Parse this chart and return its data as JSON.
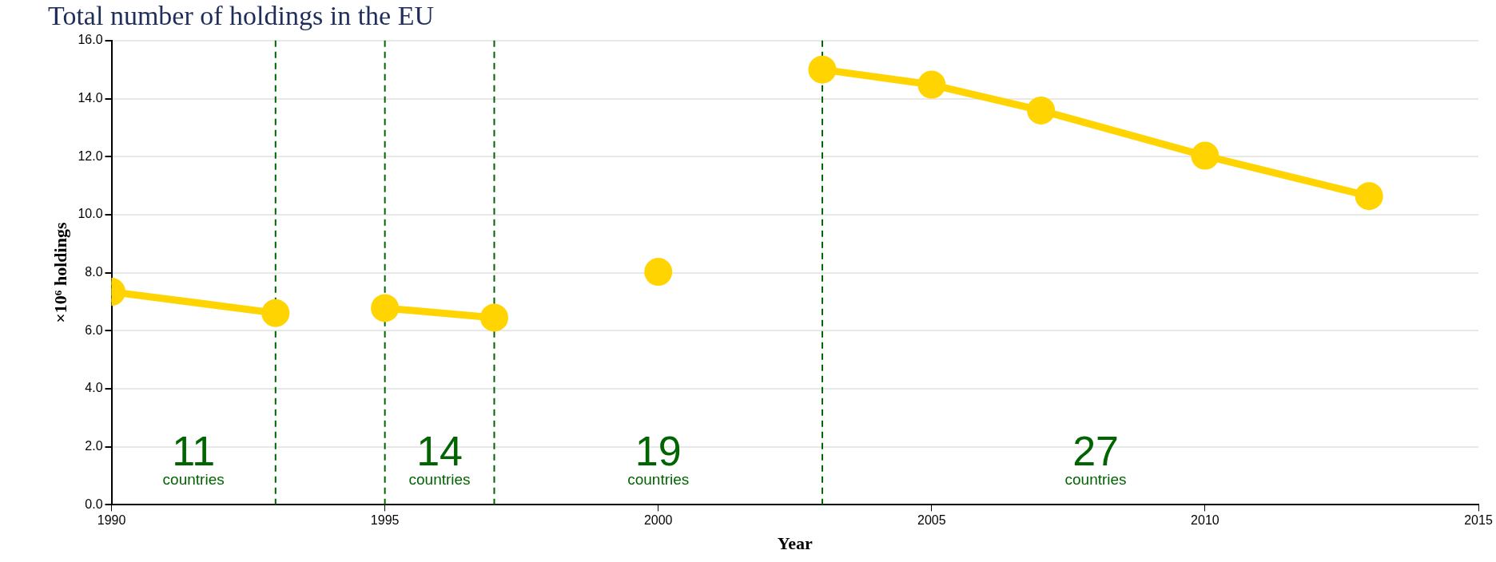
{
  "chart_data": {
    "type": "line",
    "title": "Total number of holdings in the EU",
    "xlabel": "Year",
    "ylabel": "×10⁶ holdings",
    "series": [
      {
        "color": "#ffd400",
        "x": [
          1990,
          1993
        ],
        "values": [
          7.34,
          6.61
        ]
      },
      {
        "color": "#ffd400",
        "x": [
          1995,
          1997
        ],
        "values": [
          6.78,
          6.45
        ]
      },
      {
        "color": "#ffd400",
        "x": [
          2000
        ],
        "values": [
          8.03
        ]
      },
      {
        "color": "#ffd400",
        "x": [
          2003,
          2005,
          2007,
          2010,
          2013
        ],
        "values": [
          15.0,
          14.48,
          13.59,
          12.03,
          10.64
        ]
      }
    ],
    "xlim": [
      1990,
      2015
    ],
    "xticks": [
      1990,
      1995,
      2000,
      2005,
      2010,
      2015
    ],
    "ylim": [
      0,
      16
    ],
    "yticks": [
      {
        "value": 0,
        "label": "0.0"
      },
      {
        "value": 2,
        "label": "2.0"
      },
      {
        "value": 4,
        "label": "4.0"
      },
      {
        "value": 6,
        "label": "6.0"
      },
      {
        "value": 8,
        "label": "8.0"
      },
      {
        "value": 10,
        "label": "10.0"
      },
      {
        "value": 12,
        "label": "12.0"
      },
      {
        "value": 14,
        "label": "14.0"
      },
      {
        "value": 16,
        "label": "16.0"
      }
    ],
    "grid": "y",
    "legend": false,
    "marker": "circle",
    "line_style": "solid",
    "ref_lines": [
      {
        "axis": "x",
        "value": 1993,
        "color": "#006400",
        "line_style": "dashed"
      },
      {
        "axis": "x",
        "value": 1995,
        "color": "#006400",
        "line_style": "dashed"
      },
      {
        "axis": "x",
        "value": 1997,
        "color": "#006400",
        "line_style": "dashed"
      },
      {
        "axis": "x",
        "value": 2003,
        "color": "#006400",
        "line_style": "dashed"
      }
    ],
    "annotations": [
      "11\ncountries",
      "14\ncountries",
      "19\ncountries",
      "27\ncountries"
    ]
  }
}
